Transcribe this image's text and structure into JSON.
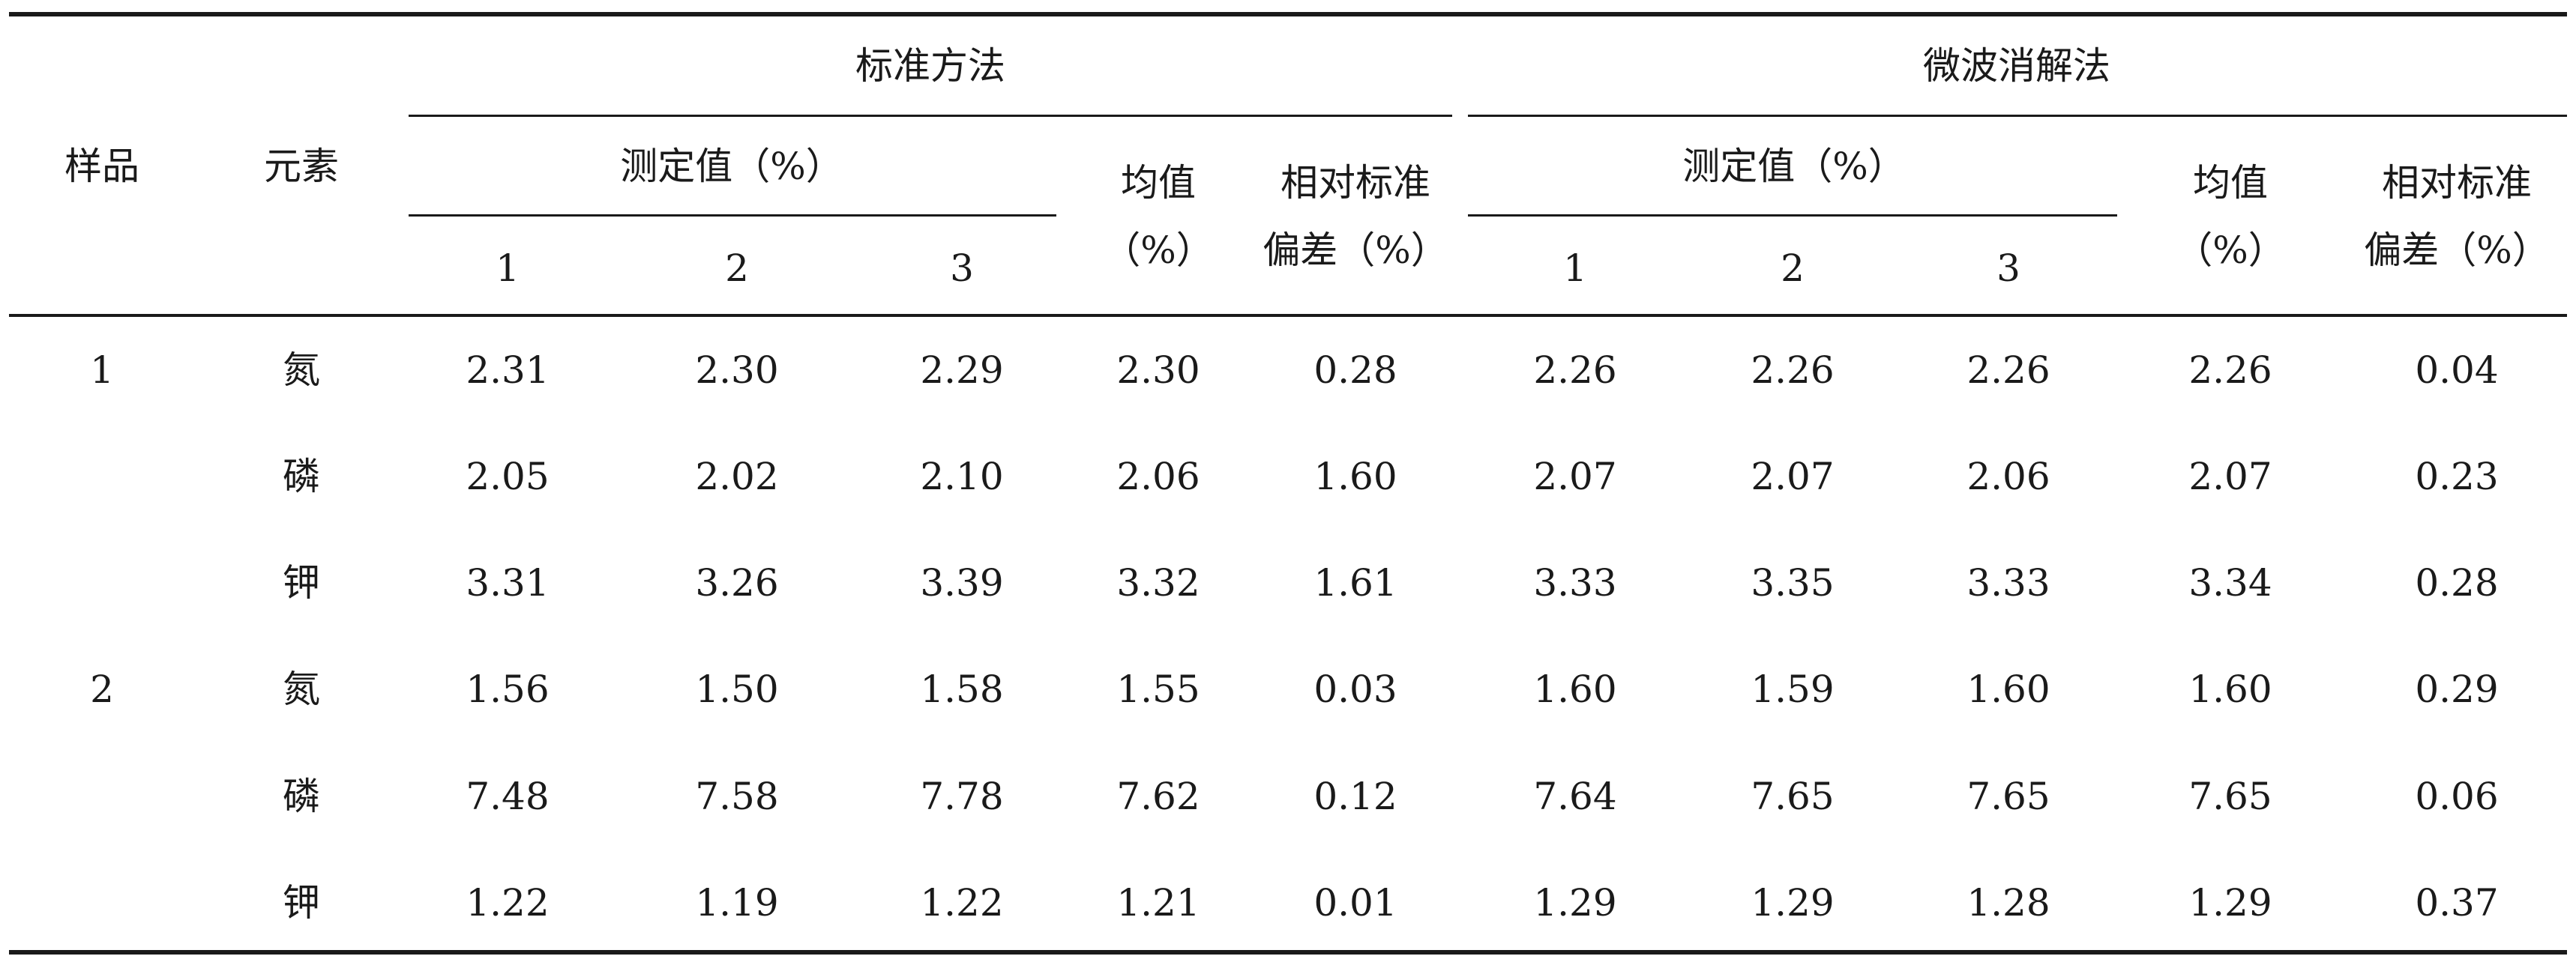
{
  "table": {
    "headers": {
      "sample": "样品",
      "element": "元素",
      "group_standard": "标准方法",
      "group_microwave": "微波消解法",
      "measured": "测定值（%）",
      "mean_line1": "均值",
      "mean_line2": "（%）",
      "rsd_line1": "相对标准",
      "rsd_line2": "偏差（%）",
      "rep1": "1",
      "rep2": "2",
      "rep3": "3"
    },
    "rows": [
      {
        "sample": "1",
        "element": "氮",
        "values": [
          "2.31",
          "2.30",
          "2.29",
          "2.30",
          "0.28",
          "2.26",
          "2.26",
          "2.26",
          "2.26",
          "0.04"
        ]
      },
      {
        "sample": "",
        "element": "磷",
        "values": [
          "2.05",
          "2.02",
          "2.10",
          "2.06",
          "1.60",
          "2.07",
          "2.07",
          "2.06",
          "2.07",
          "0.23"
        ]
      },
      {
        "sample": "",
        "element": "钾",
        "values": [
          "3.31",
          "3.26",
          "3.39",
          "3.32",
          "1.61",
          "3.33",
          "3.35",
          "3.33",
          "3.34",
          "0.28"
        ]
      },
      {
        "sample": "2",
        "element": "氮",
        "values": [
          "1.56",
          "1.50",
          "1.58",
          "1.55",
          "0.03",
          "1.60",
          "1.59",
          "1.60",
          "1.60",
          "0.29"
        ]
      },
      {
        "sample": "",
        "element": "磷",
        "values": [
          "7.48",
          "7.58",
          "7.78",
          "7.62",
          "0.12",
          "7.64",
          "7.65",
          "7.65",
          "7.65",
          "0.06"
        ]
      },
      {
        "sample": "",
        "element": "钾",
        "values": [
          "1.22",
          "1.19",
          "1.22",
          "1.21",
          "0.01",
          "1.29",
          "1.29",
          "1.28",
          "1.29",
          "0.37"
        ]
      }
    ]
  }
}
